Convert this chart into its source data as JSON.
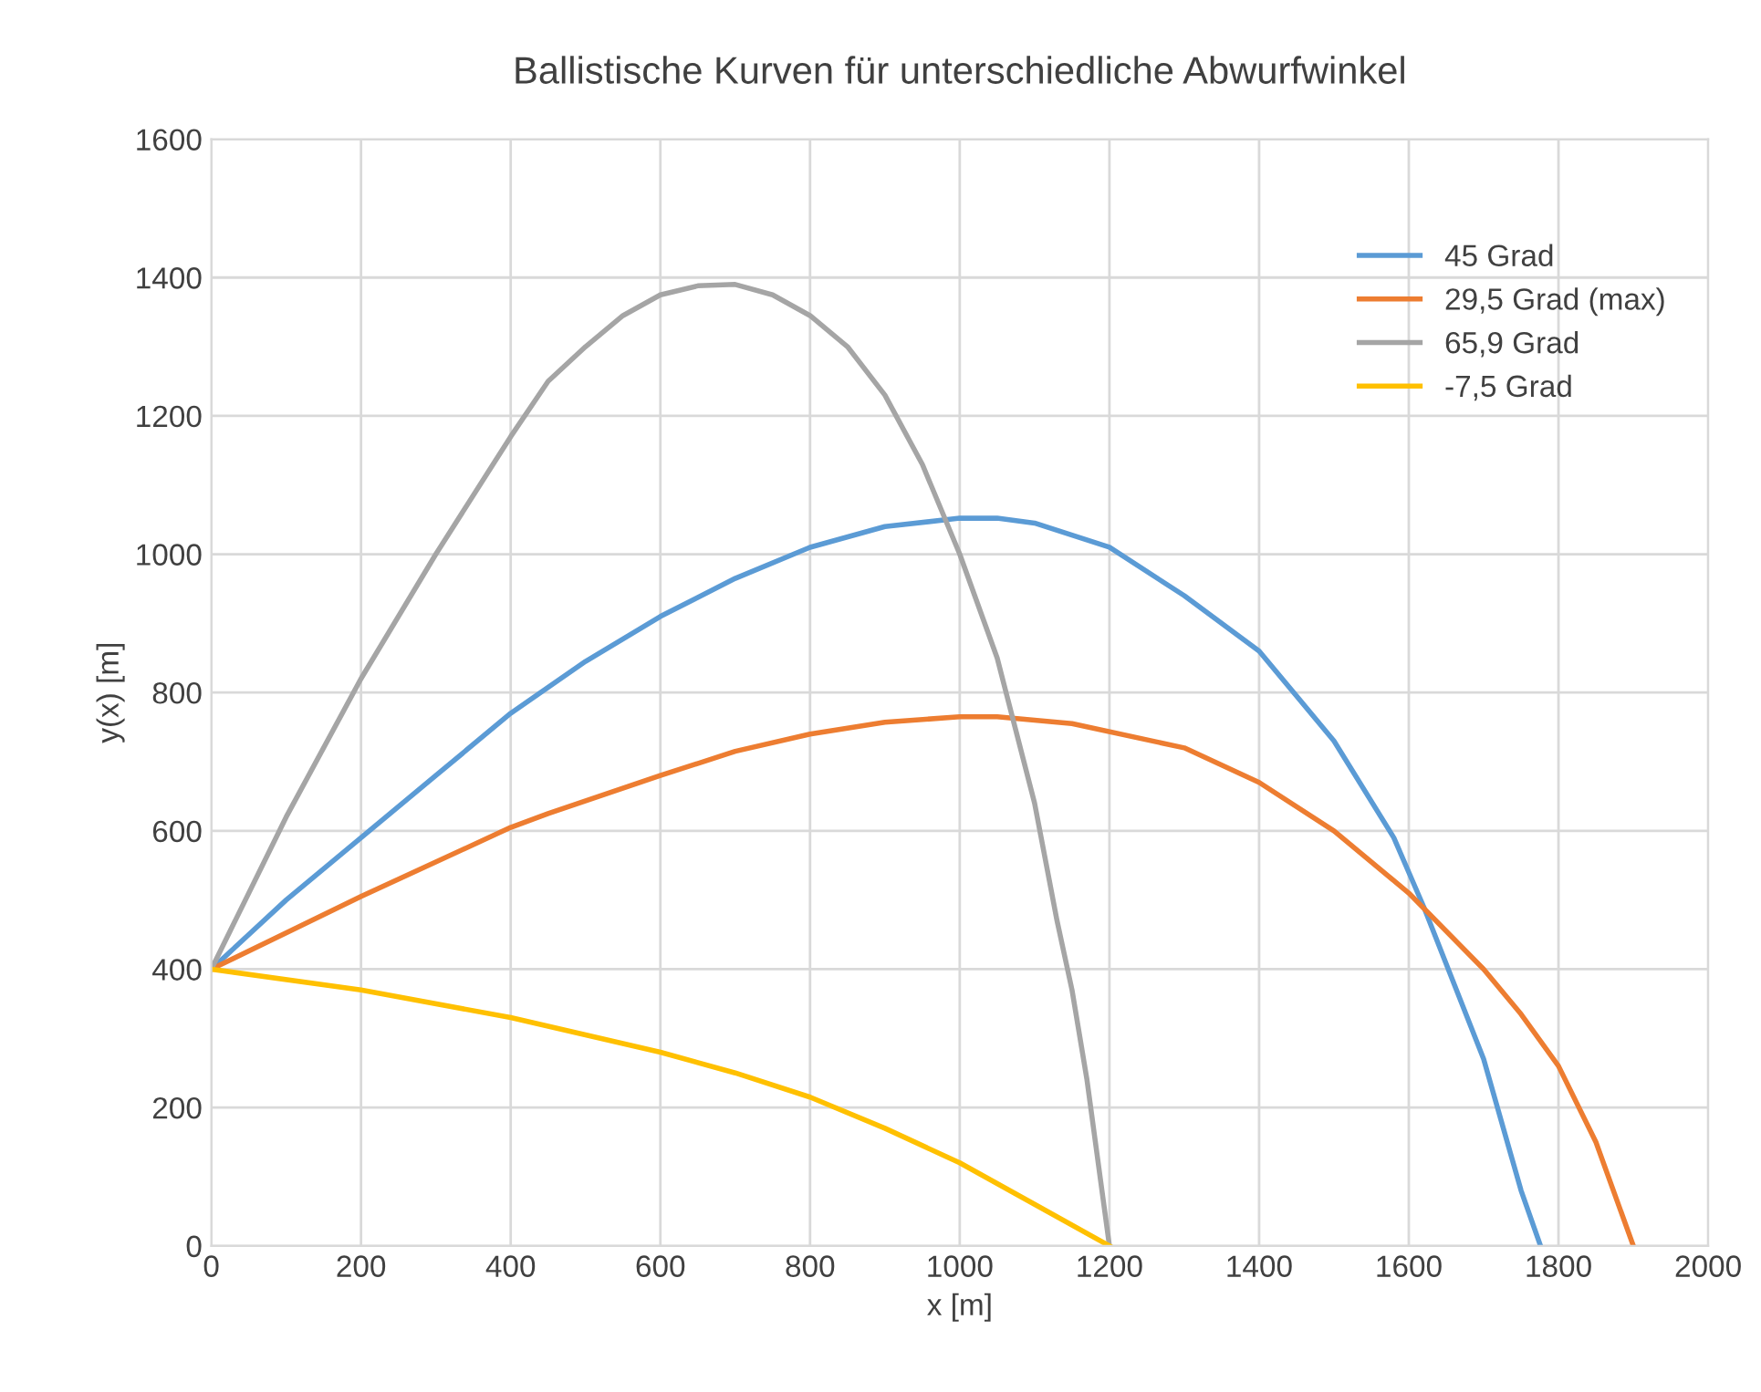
{
  "chart_data": {
    "type": "line",
    "title": "Ballistische Kurven für unterschiedliche Abwurfwinkel",
    "xlabel": "x [m]",
    "ylabel": "y(x) [m]",
    "xlim": [
      0,
      2000
    ],
    "xticks": [
      0,
      200,
      400,
      600,
      800,
      1000,
      1200,
      1400,
      1600,
      1800,
      2000
    ],
    "ylim": [
      0,
      1600
    ],
    "yticks": [
      0,
      200,
      400,
      600,
      800,
      1000,
      1200,
      1400,
      1600
    ],
    "grid": true,
    "legend": "top right",
    "marker": "none",
    "line_style": "solid",
    "series": [
      {
        "name": "45 Grad",
        "color": "#5b9bd5",
        "x": [
          0,
          100,
          200,
          300,
          400,
          500,
          600,
          700,
          800,
          900,
          1000,
          1050,
          1100,
          1200,
          1300,
          1400,
          1500,
          1580,
          1620,
          1700,
          1750,
          1776
        ],
        "values": [
          400,
          500,
          590,
          680,
          770,
          845,
          910,
          965,
          1010,
          1040,
          1052,
          1052,
          1045,
          1010,
          940,
          860,
          730,
          590,
          490,
          270,
          80,
          0
        ]
      },
      {
        "name": "29,5 Grad (max)",
        "color": "#ed7d31",
        "x": [
          0,
          200,
          400,
          450,
          600,
          700,
          800,
          900,
          1000,
          1050,
          1150,
          1300,
          1400,
          1500,
          1600,
          1700,
          1750,
          1800,
          1850,
          1900
        ],
        "values": [
          400,
          505,
          605,
          625,
          680,
          715,
          740,
          757,
          765,
          765,
          755,
          720,
          670,
          600,
          510,
          400,
          335,
          260,
          150,
          0
        ]
      },
      {
        "name": "65,9 Grad",
        "color": "#a5a5a5",
        "x": [
          0,
          100,
          200,
          300,
          400,
          450,
          500,
          550,
          600,
          650,
          700,
          750,
          800,
          850,
          900,
          950,
          1000,
          1050,
          1100,
          1130,
          1150,
          1170,
          1185,
          1200
        ],
        "values": [
          400,
          620,
          820,
          1000,
          1170,
          1250,
          1300,
          1345,
          1375,
          1388,
          1390,
          1375,
          1345,
          1300,
          1230,
          1130,
          1000,
          850,
          640,
          470,
          370,
          240,
          120,
          0
        ]
      },
      {
        "name": "-7,5 Grad",
        "color": "#ffc000",
        "x": [
          0,
          200,
          400,
          600,
          700,
          800,
          900,
          1000,
          1100,
          1200
        ],
        "values": [
          400,
          370,
          330,
          280,
          250,
          215,
          170,
          120,
          60,
          0
        ]
      }
    ]
  }
}
